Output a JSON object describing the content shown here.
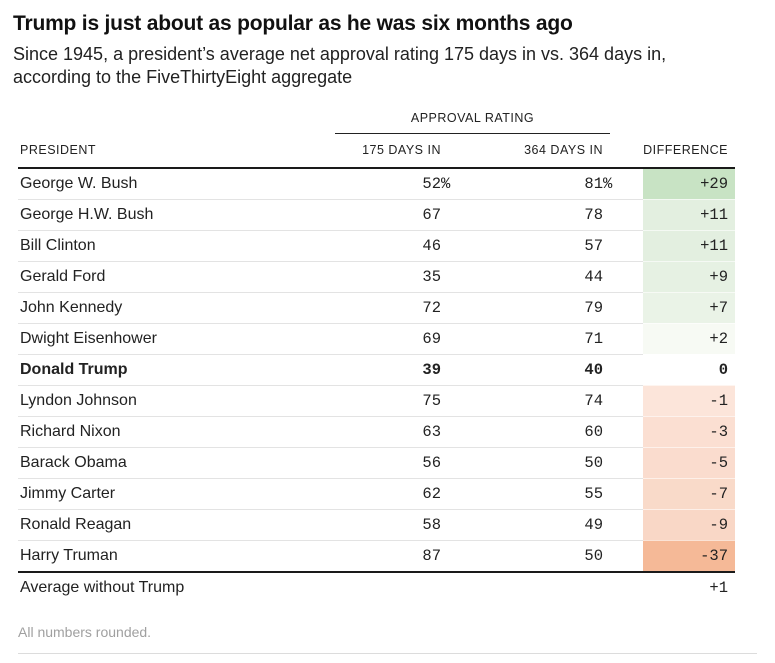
{
  "header": {
    "title": "Trump is just about as popular as he was six months ago",
    "subtitle": "Since 1945, a president’s average net approval rating 175 days in vs. 364 days in, according to the FiveThirtyEight aggregate"
  },
  "chart_data": {
    "type": "table",
    "title": "Trump is just about as popular as he was six months ago",
    "subtitle": "Since 1945, a president’s average net approval rating 175 days in vs. 364 days in, according to the FiveThirtyEight aggregate",
    "group_header": "APPROVAL RATING",
    "columns": [
      "PRESIDENT",
      "175 DAYS IN",
      "364 DAYS IN",
      "DIFFERENCE"
    ],
    "rows": [
      {
        "president": "George W. Bush",
        "days_175": "52%",
        "days_364": "81%",
        "difference": "+29",
        "diff_bg": "#c8e3c4",
        "bold": false
      },
      {
        "president": "George H.W. Bush",
        "days_175": "67",
        "days_364": "78",
        "difference": "+11",
        "diff_bg": "#e3efe0",
        "bold": false
      },
      {
        "president": "Bill Clinton",
        "days_175": "46",
        "days_364": "57",
        "difference": "+11",
        "diff_bg": "#e3efe0",
        "bold": false
      },
      {
        "president": "Gerald Ford",
        "days_175": "35",
        "days_364": "44",
        "difference": "+9",
        "diff_bg": "#e6f1e3",
        "bold": false
      },
      {
        "president": "John Kennedy",
        "days_175": "72",
        "days_364": "79",
        "difference": "+7",
        "diff_bg": "#eaf3e7",
        "bold": false
      },
      {
        "president": "Dwight Eisenhower",
        "days_175": "69",
        "days_364": "71",
        "difference": "+2",
        "diff_bg": "#f7faf4",
        "bold": false
      },
      {
        "president": "Donald Trump",
        "days_175": "39",
        "days_364": "40",
        "difference": "0",
        "diff_bg": "",
        "bold": true
      },
      {
        "president": "Lyndon Johnson",
        "days_175": "75",
        "days_364": "74",
        "difference": "-1",
        "diff_bg": "#fce5da",
        "bold": false
      },
      {
        "president": "Richard Nixon",
        "days_175": "63",
        "days_364": "60",
        "difference": "-3",
        "diff_bg": "#fbdfd2",
        "bold": false
      },
      {
        "president": "Barack Obama",
        "days_175": "56",
        "days_364": "50",
        "difference": "-5",
        "diff_bg": "#fadcce",
        "bold": false
      },
      {
        "president": "Jimmy Carter",
        "days_175": "62",
        "days_364": "55",
        "difference": "-7",
        "diff_bg": "#f9dac9",
        "bold": false
      },
      {
        "president": "Ronald Reagan",
        "days_175": "58",
        "days_364": "49",
        "difference": "-9",
        "diff_bg": "#f9d7c6",
        "bold": false
      },
      {
        "president": "Harry Truman",
        "days_175": "87",
        "days_364": "50",
        "difference": "-37",
        "diff_bg": "#f5b997",
        "bold": false
      }
    ],
    "summary_row": {
      "president": "Average without Trump",
      "days_175": "",
      "days_364": "",
      "difference": "+1"
    },
    "footnote": "All numbers rounded."
  },
  "colors": {
    "positive_scale_max": "#c8e3c4",
    "negative_scale_max": "#f5b997",
    "heavy_rule": "#1a1a1a",
    "row_divider": "#e3e3e3",
    "footnote_gray": "#a0a0a0"
  }
}
